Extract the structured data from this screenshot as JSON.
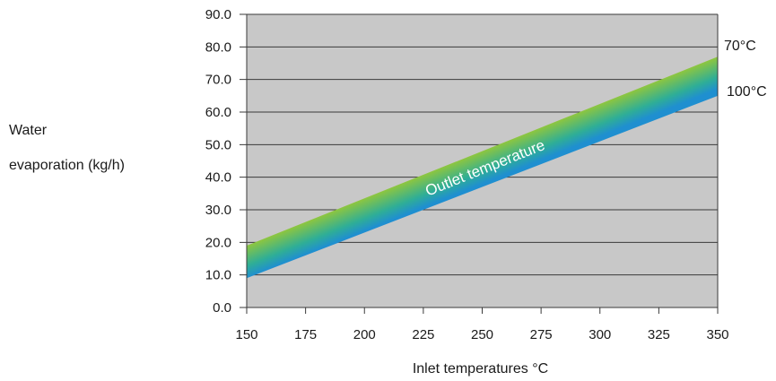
{
  "chart_data": {
    "type": "area",
    "title": "",
    "xlabel": "Inlet temperatures °C",
    "ylabel_lines": [
      "Water",
      "evaporation (kg/h)"
    ],
    "x_ticks": [
      150,
      175,
      200,
      225,
      250,
      275,
      300,
      325,
      350
    ],
    "x_tick_labels": [
      "150",
      "175",
      "200",
      "225",
      "250",
      "275",
      "300",
      "325",
      "350"
    ],
    "y_ticks": [
      0,
      10,
      20,
      30,
      40,
      50,
      60,
      70,
      80,
      90
    ],
    "y_tick_labels": [
      "0.0",
      "10.0",
      "20.0",
      "30.0",
      "40.0",
      "50.0",
      "60.0",
      "70.0",
      "80.0",
      "90.0"
    ],
    "xlim": [
      150,
      350
    ],
    "ylim": [
      0,
      90
    ],
    "grid": true,
    "band_label": "Outlet temperature",
    "series": [
      {
        "name": "70°C",
        "x": [
          150,
          350
        ],
        "y": [
          19,
          77
        ]
      },
      {
        "name": "100°C",
        "x": [
          150,
          350
        ],
        "y": [
          9,
          65
        ]
      }
    ],
    "colors": {
      "plot_background": "#c8c8c8",
      "gridline": "#3a3a3a",
      "band_top": "#8ec63f",
      "band_mid": "#2fae96",
      "band_bottom": "#1f8fd0"
    }
  }
}
